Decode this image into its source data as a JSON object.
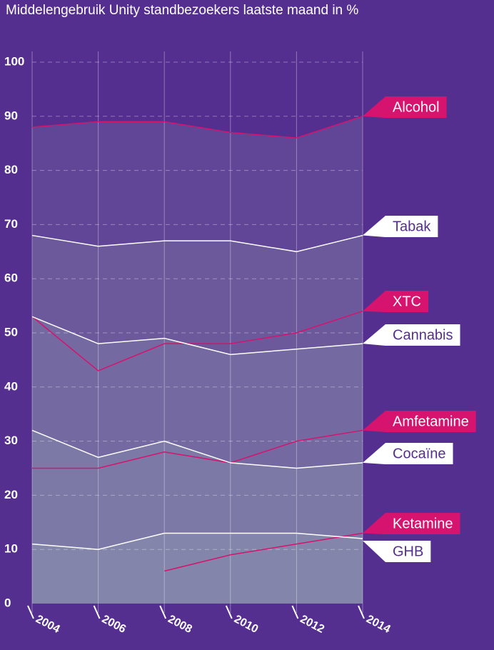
{
  "chart_data": {
    "type": "line",
    "title": "Middelengebruik Unity standbezoekers laatste maand in %",
    "x": [
      2004,
      2006,
      2008,
      2010,
      2012,
      2014
    ],
    "xlim": [
      2004,
      2014
    ],
    "xticks": [
      2004,
      2006,
      2008,
      2010,
      2012,
      2014
    ],
    "ylim": [
      0,
      100
    ],
    "yticks": [
      0,
      10,
      20,
      30,
      40,
      50,
      60,
      70,
      80,
      90,
      100
    ],
    "grid": true,
    "series": [
      {
        "name": "Alcohol",
        "color": "#d6136e",
        "area": true,
        "values": [
          88,
          89,
          89,
          87,
          86,
          90
        ]
      },
      {
        "name": "Tabak",
        "color": "#ffffff",
        "area": true,
        "values": [
          68,
          66,
          67,
          67,
          65,
          68
        ]
      },
      {
        "name": "XTC",
        "color": "#d6136e",
        "area": false,
        "values": [
          53,
          43,
          48,
          48,
          50,
          54
        ]
      },
      {
        "name": "Cannabis",
        "color": "#ffffff",
        "area": true,
        "values": [
          53,
          48,
          49,
          46,
          47,
          48
        ]
      },
      {
        "name": "Amfetamine",
        "color": "#d6136e",
        "area": false,
        "values": [
          25,
          25,
          28,
          26,
          30,
          32
        ]
      },
      {
        "name": "Cocaïne",
        "color": "#ffffff",
        "area": true,
        "values": [
          32,
          27,
          30,
          26,
          25,
          26
        ]
      },
      {
        "name": "Ketamine",
        "color": "#d6136e",
        "area": false,
        "values": [
          null,
          null,
          6,
          9,
          11,
          13
        ]
      },
      {
        "name": "GHB",
        "color": "#ffffff",
        "area": true,
        "values": [
          11,
          10,
          13,
          13,
          13,
          12
        ]
      }
    ]
  }
}
